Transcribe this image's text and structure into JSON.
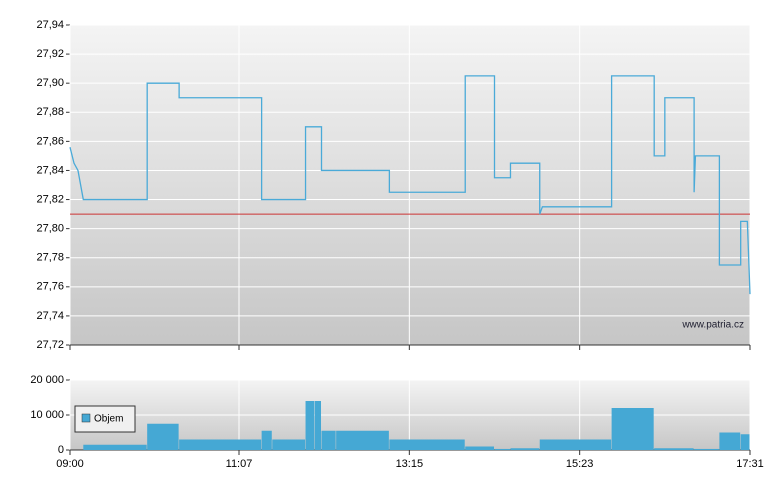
{
  "chart_data": [
    {
      "type": "line",
      "watermark": "www.patria.cz",
      "xlim": [
        "09:00",
        "17:31"
      ],
      "xticks": [
        "09:00",
        "11:07",
        "13:15",
        "15:23",
        "17:31"
      ],
      "ylim": [
        27.72,
        27.94
      ],
      "yticks": [
        {
          "value": 27.72,
          "label": "27,72"
        },
        {
          "value": 27.74,
          "label": "27,74"
        },
        {
          "value": 27.76,
          "label": "27,76"
        },
        {
          "value": 27.78,
          "label": "27,78"
        },
        {
          "value": 27.8,
          "label": "27,80"
        },
        {
          "value": 27.82,
          "label": "27,82"
        },
        {
          "value": 27.84,
          "label": "27,84"
        },
        {
          "value": 27.86,
          "label": "27,86"
        },
        {
          "value": 27.88,
          "label": "27,88"
        },
        {
          "value": 27.9,
          "label": "27,90"
        },
        {
          "value": 27.92,
          "label": "27,92"
        },
        {
          "value": 27.94,
          "label": "27,94"
        }
      ],
      "grid": true,
      "reference_line": {
        "value": 27.81,
        "color": "#cc3333"
      },
      "series": [
        {
          "color": "#4aaad8",
          "x": [
            "09:00",
            "09:03",
            "09:06",
            "09:10",
            "09:58",
            "09:58",
            "10:22",
            "10:22",
            "11:24",
            "11:24",
            "11:57",
            "11:57",
            "12:09",
            "12:09",
            "13:00",
            "13:00",
            "13:57",
            "13:57",
            "14:19",
            "14:19",
            "14:31",
            "14:31",
            "14:53",
            "14:53",
            "14:55",
            "15:47",
            "15:47",
            "16:19",
            "16:19",
            "16:27",
            "16:27",
            "16:49",
            "16:49",
            "16:50",
            "17:08",
            "17:08",
            "17:24",
            "17:24",
            "17:29",
            "17:31"
          ],
          "values": [
            27.856,
            27.845,
            27.84,
            27.82,
            27.82,
            27.9,
            27.9,
            27.89,
            27.89,
            27.82,
            27.82,
            27.87,
            27.87,
            27.84,
            27.84,
            27.825,
            27.825,
            27.905,
            27.905,
            27.835,
            27.835,
            27.845,
            27.845,
            27.81,
            27.815,
            27.815,
            27.905,
            27.905,
            27.85,
            27.85,
            27.89,
            27.89,
            27.825,
            27.85,
            27.85,
            27.775,
            27.775,
            27.805,
            27.805,
            27.755
          ]
        }
      ]
    },
    {
      "type": "bar",
      "xlim": [
        "09:00",
        "17:31"
      ],
      "xticks": [
        "09:00",
        "11:07",
        "13:15",
        "15:23",
        "17:31"
      ],
      "ylim": [
        0,
        20000
      ],
      "yticks": [
        0,
        {
          "value": 10000,
          "label": "10 000"
        },
        {
          "value": 20000,
          "label": "20 000"
        }
      ],
      "grid": true,
      "legend": "lower left",
      "series": [
        {
          "name": "Objem",
          "color": "#45a8d4",
          "x": [
            "09:10",
            "09:58",
            "10:22",
            "11:24",
            "11:32",
            "11:57",
            "12:04",
            "12:09",
            "12:20",
            "13:00",
            "13:57",
            "14:19",
            "14:31",
            "14:53",
            "15:47",
            "16:19",
            "16:49",
            "17:08",
            "17:24"
          ],
          "x_end": [
            "09:58",
            "10:22",
            "11:24",
            "11:32",
            "11:57",
            "12:04",
            "12:09",
            "12:20",
            "13:00",
            "13:57",
            "14:19",
            "14:31",
            "14:53",
            "15:47",
            "16:19",
            "16:49",
            "17:08",
            "17:24",
            "17:31"
          ],
          "values": [
            1500,
            7500,
            3000,
            5500,
            3000,
            14000,
            14000,
            5500,
            5500,
            3000,
            1000,
            300,
            500,
            3000,
            12000,
            500,
            300,
            5000,
            4500
          ]
        }
      ]
    }
  ]
}
